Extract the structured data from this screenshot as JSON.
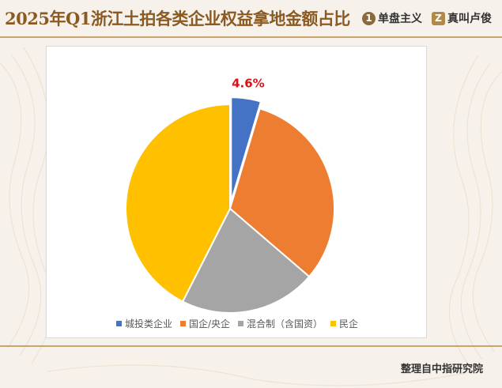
{
  "header": {
    "title": "2025年Q1浙江土拍各类企业权益拿地金额占比",
    "brand1_icon": "1",
    "brand1_name": "单盘主义",
    "brand2_icon": "Z",
    "brand2_name": "真叫卢俊"
  },
  "footer": {
    "source": "整理自中指研究院"
  },
  "colors": {
    "title": "#8a5a22",
    "rule": "#c9a56e",
    "label_red": "#e01010"
  },
  "chart_data": {
    "type": "pie",
    "title": "",
    "legend_position": "bottom",
    "slices": [
      {
        "label": "城投类企业",
        "value": 4.6,
        "color": "#4472c4",
        "exploded": true,
        "data_label": "4.6%"
      },
      {
        "label": "国企/央企",
        "value": 31.7,
        "color": "#ed7d31",
        "exploded": false,
        "data_label": ""
      },
      {
        "label": "混合制（含国资）",
        "value": 21.2,
        "color": "#a5a5a5",
        "exploded": false,
        "data_label": ""
      },
      {
        "label": "民企",
        "value": 42.5,
        "color": "#ffc000",
        "exploded": false,
        "data_label": ""
      }
    ]
  }
}
